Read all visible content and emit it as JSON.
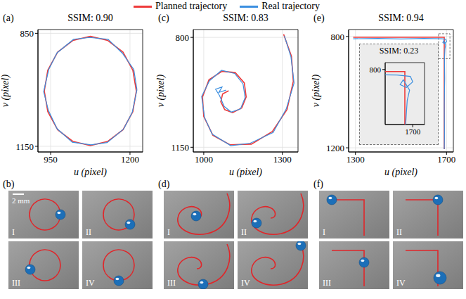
{
  "chart_data": [
    {
      "type": "line",
      "panel": "(a)",
      "title": "SSIM: 0.90",
      "x_label": "u (pixel)",
      "y_label": "v (pixel)",
      "xlim": [
        910,
        1240
      ],
      "ylim": [
        1165,
        840
      ],
      "xticks": [
        950,
        1200
      ],
      "yticks": [
        850,
        1150
      ],
      "grid": true,
      "legend": "top",
      "series": [
        {
          "name": "Planned trajectory",
          "color": "#ee3b3b",
          "x": [
            1220,
            1209,
            1178,
            1130,
            1075,
            1020,
            972,
            941,
            930,
            941,
            972,
            1020,
            1075,
            1130,
            1178,
            1209,
            1220
          ],
          "values": [
            1003,
            1058,
            1106,
            1137,
            1148,
            1137,
            1106,
            1058,
            1003,
            948,
            900,
            869,
            858,
            869,
            900,
            948,
            1003
          ]
        },
        {
          "name": "Real trajectory",
          "color": "#3b8fe0",
          "x": [
            1222,
            1207,
            1180,
            1128,
            1077,
            1018,
            970,
            943,
            928,
            944,
            970,
            1022,
            1073,
            1131,
            1176,
            1212,
            1222
          ],
          "values": [
            1000,
            1060,
            1104,
            1140,
            1146,
            1139,
            1103,
            1055,
            1005,
            946,
            902,
            866,
            861,
            866,
            903,
            946,
            1000
          ]
        }
      ]
    },
    {
      "type": "line",
      "panel": "(c)",
      "title": "SSIM: 0.83",
      "x_label": "u (pixel)",
      "y_label": "v (pixel)",
      "xlim": [
        960,
        1360
      ],
      "ylim": [
        1165,
        775
      ],
      "xticks": [
        1000,
        1300
      ],
      "yticks": [
        800,
        1150
      ],
      "grid": true,
      "series": [
        {
          "name": "Planned trajectory",
          "color": "#ee3b3b",
          "x": [
            1305,
            1335,
            1342,
            1318,
            1262,
            1182,
            1100,
            1035,
            1000,
            995,
            1020,
            1070,
            1120,
            1155,
            1162,
            1145,
            1110,
            1080,
            1065,
            1072,
            1095
          ],
          "values": [
            790,
            860,
            940,
            1030,
            1100,
            1140,
            1142,
            1112,
            1052,
            990,
            935,
            908,
            912,
            945,
            990,
            1025,
            1040,
            1030,
            1005,
            980,
            970
          ]
        },
        {
          "name": "Real trajectory",
          "color": "#3b8fe0",
          "x": [
            1308,
            1333,
            1345,
            1315,
            1265,
            1178,
            1103,
            1032,
            1003,
            992,
            1022,
            1068,
            1118,
            1150,
            1158,
            1140,
            1105,
            1078,
            1060,
            1045,
            1070,
            1058,
            1085
          ],
          "values": [
            795,
            862,
            945,
            1028,
            1103,
            1137,
            1145,
            1108,
            1055,
            988,
            938,
            905,
            915,
            948,
            992,
            1028,
            1038,
            1020,
            985,
            965,
            958,
            975,
            968
          ]
        }
      ]
    },
    {
      "type": "line",
      "panel": "(e)",
      "title": "SSIM: 0.94",
      "x_label": "u (pixel)",
      "y_label": "v (pixel)",
      "xlim": [
        1270,
        1730
      ],
      "ylim": [
        1215,
        775
      ],
      "xticks": [
        1300,
        1700
      ],
      "yticks": [
        800,
        1200
      ],
      "grid": true,
      "series": [
        {
          "name": "Planned trajectory",
          "color": "#ee3b3b",
          "x": [
            1290,
            1690,
            1690
          ],
          "values": [
            803,
            803,
            1205
          ]
        },
        {
          "name": "Real trajectory",
          "color": "#3b8fe0",
          "x": [
            1290,
            1400,
            1500,
            1600,
            1680,
            1697,
            1700,
            1692,
            1684,
            1688,
            1696,
            1693,
            1691,
            1692,
            1690,
            1691,
            1690
          ],
          "values": [
            808,
            807,
            809,
            807,
            808,
            810,
            818,
            826,
            822,
            815,
            830,
            845,
            880,
            950,
            1050,
            1150,
            1205
          ]
        }
      ],
      "inset": {
        "title": "SSIM: 0.23",
        "xlim": [
          1665,
          1715
        ],
        "ylim": [
          880,
          790
        ],
        "xticks": [
          1700
        ],
        "yticks": [
          800
        ]
      }
    }
  ],
  "photos": [
    {
      "panel": "(b)",
      "labels": [
        "I",
        "II",
        "III",
        "IV"
      ],
      "scale_bar": "2 mm"
    },
    {
      "panel": "(d)",
      "labels": [
        "I",
        "II",
        "III",
        "IV"
      ]
    },
    {
      "panel": "(f)",
      "labels": [
        "I",
        "II",
        "III",
        "IV"
      ]
    }
  ]
}
